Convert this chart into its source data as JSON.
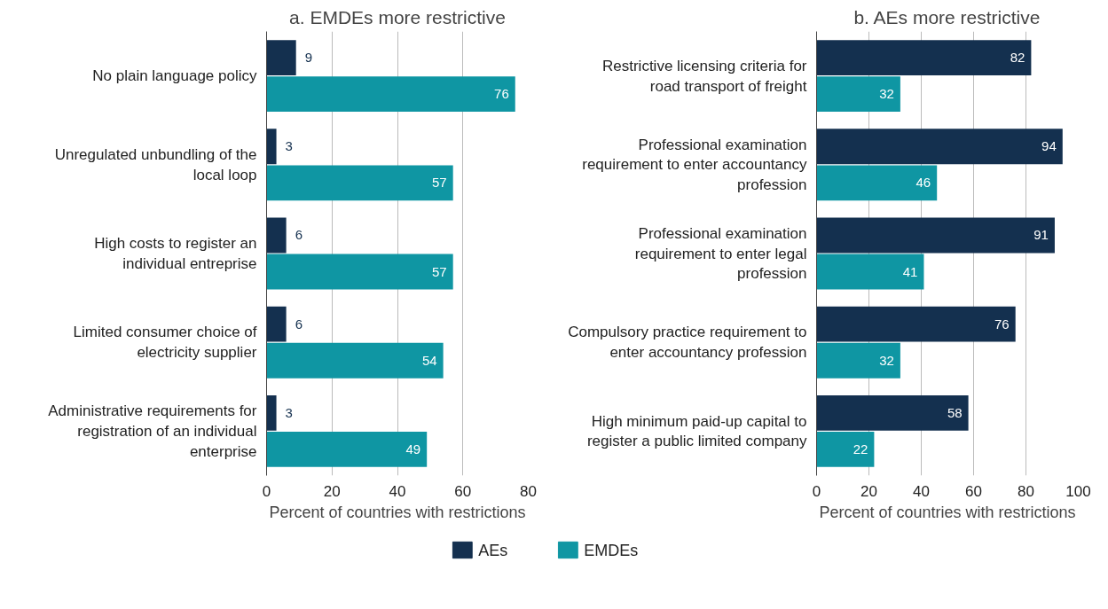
{
  "chart_data": [
    {
      "type": "bar",
      "orientation": "horizontal",
      "title": "a. EMDEs more restrictive",
      "xlabel": "Percent of countries with restrictions",
      "categories": [
        "No plain language policy",
        "Unregulated unbundling of the local loop",
        "High costs to register an individual entreprise",
        "Limited consumer choice of electricity supplier",
        "Administrative requirements for registration of an individual enterprise"
      ],
      "series": [
        {
          "name": "AEs",
          "color": "#14304f",
          "values": [
            9,
            3,
            6,
            6,
            3
          ]
        },
        {
          "name": "EMDEs",
          "color": "#0f96a3",
          "values": [
            76,
            57,
            57,
            54,
            49
          ]
        }
      ],
      "xlim": [
        0,
        80
      ],
      "xticks": [
        0,
        20,
        40,
        60,
        80
      ],
      "grid": "x",
      "data_labels": true,
      "legend": "bottom"
    },
    {
      "type": "bar",
      "orientation": "horizontal",
      "title": "b. AEs more restrictive",
      "xlabel": "Percent of countries with restrictions",
      "categories": [
        "Restrictive licensing criteria for road transport of freight",
        "Professional examination requirement to enter accountancy profession",
        "Professional examination requirement to enter legal profession",
        "Compulsory practice requirement to enter accountancy profession",
        "High minimum paid-up capital to register a public limited company"
      ],
      "series": [
        {
          "name": "AEs",
          "color": "#14304f",
          "values": [
            82,
            94,
            91,
            76,
            58
          ]
        },
        {
          "name": "EMDEs",
          "color": "#0f96a3",
          "values": [
            32,
            46,
            41,
            32,
            22
          ]
        }
      ],
      "xlim": [
        0,
        100
      ],
      "xticks": [
        0,
        20,
        40,
        60,
        80,
        100
      ],
      "grid": "x",
      "data_labels": true,
      "legend": "bottom"
    }
  ]
}
